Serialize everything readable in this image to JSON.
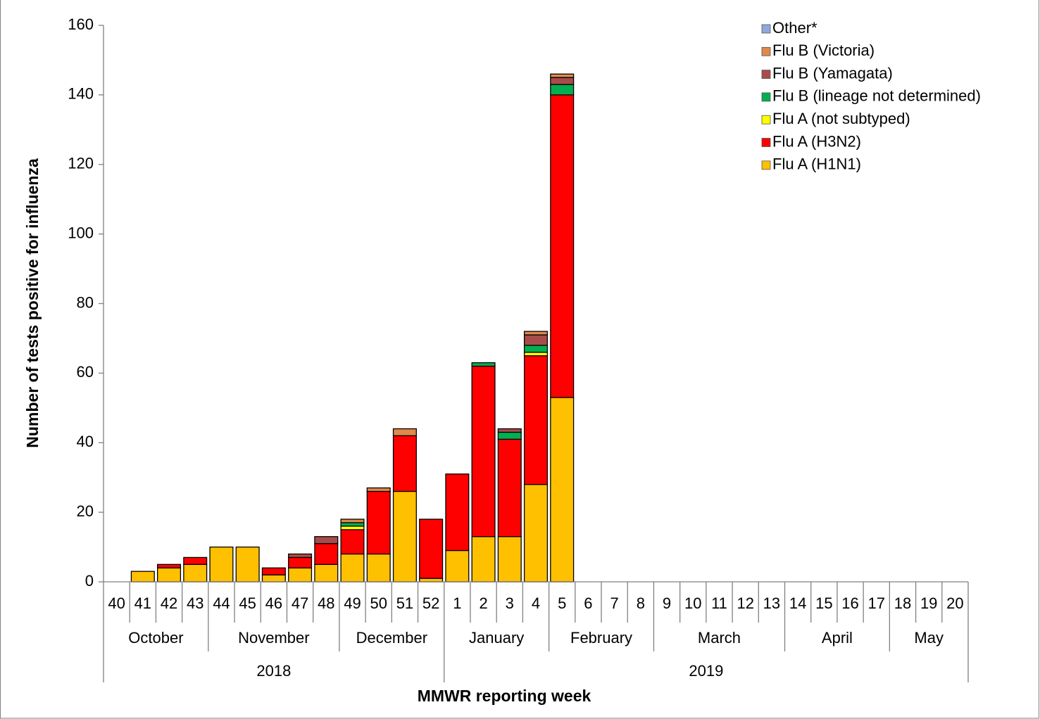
{
  "chart_data": {
    "type": "stacked_bar",
    "y_label": "Number of tests positive for influenza",
    "x_label": "MMWR reporting week",
    "categories": [
      "40",
      "41",
      "42",
      "43",
      "44",
      "45",
      "46",
      "47",
      "48",
      "49",
      "50",
      "51",
      "52",
      "1",
      "2",
      "3",
      "4",
      "5",
      "6",
      "7",
      "8",
      "9",
      "10",
      "11",
      "12",
      "13",
      "14",
      "15",
      "16",
      "17",
      "18",
      "19",
      "20"
    ],
    "months": [
      {
        "label": "October",
        "span": 4
      },
      {
        "label": "November",
        "span": 5
      },
      {
        "label": "December",
        "span": 4
      },
      {
        "label": "January",
        "span": 4
      },
      {
        "label": "February",
        "span": 4
      },
      {
        "label": "March",
        "span": 5
      },
      {
        "label": "April",
        "span": 4
      },
      {
        "label": "May",
        "span": 3
      }
    ],
    "years": [
      {
        "label": "2018",
        "span": 13
      },
      {
        "label": "2019",
        "span": 20
      }
    ],
    "series": [
      {
        "name": "Flu A (H1N1)",
        "color": "#FFC000",
        "values": [
          0,
          3,
          4,
          5,
          10,
          10,
          2,
          4,
          5,
          8,
          8,
          26,
          1,
          9,
          13,
          13,
          28,
          53,
          0,
          0,
          0,
          0,
          0,
          0,
          0,
          0,
          0,
          0,
          0,
          0,
          0,
          0,
          0
        ]
      },
      {
        "name": "Flu A (H3N2)",
        "color": "#FF0000",
        "values": [
          0,
          0,
          1,
          2,
          0,
          0,
          2,
          3,
          6,
          7,
          18,
          16,
          17,
          22,
          49,
          28,
          37,
          87,
          0,
          0,
          0,
          0,
          0,
          0,
          0,
          0,
          0,
          0,
          0,
          0,
          0,
          0,
          0
        ]
      },
      {
        "name": "Flu A (not subtyped)",
        "color": "#FFFF00",
        "values": [
          0,
          0,
          0,
          0,
          0,
          0,
          0,
          0,
          0,
          1,
          0,
          0,
          0,
          0,
          0,
          0,
          1,
          0,
          0,
          0,
          0,
          0,
          0,
          0,
          0,
          0,
          0,
          0,
          0,
          0,
          0,
          0,
          0
        ]
      },
      {
        "name": "Flu B (lineage not determined)",
        "color": "#00B050",
        "values": [
          0,
          0,
          0,
          0,
          0,
          0,
          0,
          0,
          0,
          1,
          0,
          0,
          0,
          0,
          1,
          2,
          2,
          3,
          0,
          0,
          0,
          0,
          0,
          0,
          0,
          0,
          0,
          0,
          0,
          0,
          0,
          0,
          0
        ]
      },
      {
        "name": "Flu B (Yamagata)",
        "color": "#A94B4B",
        "values": [
          0,
          0,
          0,
          0,
          0,
          0,
          0,
          1,
          2,
          0,
          0,
          0,
          0,
          0,
          0,
          1,
          3,
          2,
          0,
          0,
          0,
          0,
          0,
          0,
          0,
          0,
          0,
          0,
          0,
          0,
          0,
          0,
          0
        ]
      },
      {
        "name": "Flu B (Victoria)",
        "color": "#E0894A",
        "values": [
          0,
          0,
          0,
          0,
          0,
          0,
          0,
          0,
          0,
          1,
          1,
          2,
          0,
          0,
          0,
          0,
          1,
          1,
          0,
          0,
          0,
          0,
          0,
          0,
          0,
          0,
          0,
          0,
          0,
          0,
          0,
          0,
          0
        ]
      },
      {
        "name": "Other*",
        "color": "#8EA9DB",
        "values": [
          0,
          0,
          0,
          0,
          0,
          0,
          0,
          0,
          0,
          0,
          0,
          0,
          0,
          0,
          0,
          0,
          0,
          0,
          0,
          0,
          0,
          0,
          0,
          0,
          0,
          0,
          0,
          0,
          0,
          0,
          0,
          0,
          0
        ]
      }
    ],
    "ylim": [
      0,
      160
    ],
    "yticks": [
      0,
      20,
      40,
      60,
      80,
      100,
      120,
      140,
      160
    ]
  }
}
